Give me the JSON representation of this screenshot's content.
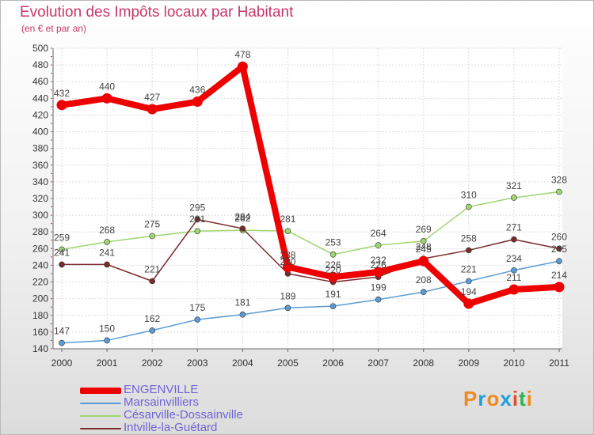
{
  "header": {
    "title": "Evolution des Impôts locaux par Habitant",
    "subtitle": "(en € et par an)"
  },
  "logo": {
    "text": "Proxiti",
    "letters": [
      "P",
      "r",
      "o",
      "x",
      "i",
      "t",
      "i"
    ],
    "colors": [
      "#f08a1c",
      "#1ea0d8",
      "#f08a1c",
      "#1ea0d8",
      "#e94a2c",
      "#2db54a",
      "#f08a1c"
    ]
  },
  "chart_data": {
    "type": "line",
    "title": "Evolution des Impôts locaux par Habitant",
    "subtitle": "(en € et par an)",
    "x": [
      "2000",
      "2001",
      "2002",
      "2003",
      "2004",
      "2005",
      "2006",
      "2007",
      "2008",
      "2009",
      "2010",
      "2011"
    ],
    "ylim": [
      140,
      500
    ],
    "yticks": [
      140,
      160,
      180,
      200,
      220,
      240,
      260,
      280,
      300,
      320,
      340,
      360,
      380,
      400,
      420,
      440,
      460,
      480,
      500
    ],
    "grid": true,
    "legend_position": "bottom-left",
    "series": [
      {
        "name": "ENGENVILLE",
        "color": "#ee0000",
        "emphasis": true,
        "values": [
          432,
          440,
          427,
          436,
          478,
          238,
          226,
          232,
          245,
          194,
          211,
          214
        ]
      },
      {
        "name": "Marsainvilliers",
        "color": "#5b9bd5",
        "emphasis": false,
        "values": [
          147,
          150,
          162,
          175,
          181,
          189,
          191,
          199,
          208,
          221,
          234,
          245
        ]
      },
      {
        "name": "Césarville-Dossainville",
        "color": "#9fd66f",
        "emphasis": false,
        "values": [
          259,
          268,
          275,
          281,
          282,
          281,
          253,
          264,
          269,
          310,
          321,
          328
        ]
      },
      {
        "name": "Intville-la-Guétard",
        "color": "#7b2b2b",
        "emphasis": false,
        "values": [
          241,
          241,
          221,
          295,
          284,
          230,
          220,
          226,
          248,
          258,
          271,
          260
        ]
      }
    ]
  }
}
